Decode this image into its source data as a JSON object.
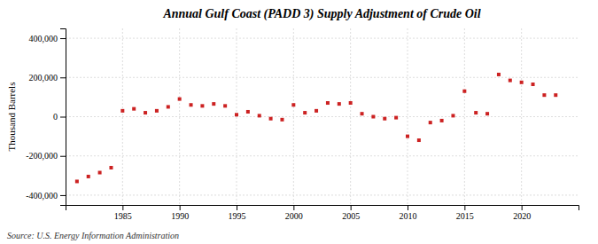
{
  "chart_data": {
    "type": "scatter",
    "title": "Annual Gulf Coast (PADD 3) Supply Adjustment of Crude Oil",
    "ylabel": "Thousand Barrels",
    "source": "Source: U.S. Energy Information Administration",
    "x": [
      1981,
      1982,
      1983,
      1984,
      1985,
      1986,
      1987,
      1988,
      1989,
      1990,
      1991,
      1992,
      1993,
      1994,
      1995,
      1996,
      1997,
      1998,
      1999,
      2000,
      2001,
      2002,
      2003,
      2004,
      2005,
      2006,
      2007,
      2008,
      2009,
      2010,
      2011,
      2012,
      2013,
      2014,
      2015,
      2016,
      2017,
      2018,
      2019,
      2020,
      2021,
      2022,
      2023
    ],
    "values": [
      -330000,
      -305000,
      -285000,
      -260000,
      30000,
      40000,
      20000,
      30000,
      50000,
      90000,
      60000,
      55000,
      65000,
      55000,
      10000,
      25000,
      5000,
      -10000,
      -15000,
      60000,
      20000,
      30000,
      70000,
      65000,
      70000,
      15000,
      0,
      -10000,
      -5000,
      -100000,
      -120000,
      -30000,
      -20000,
      5000,
      130000,
      20000,
      15000,
      215000,
      185000,
      175000,
      165000,
      110000,
      110000
    ],
    "color": "#cc2222",
    "marker": "square",
    "xlim": [
      1980,
      2025
    ],
    "xticks": [
      1985,
      1990,
      1995,
      2000,
      2005,
      2010,
      2015,
      2020
    ],
    "ylim": [
      -450000,
      450000
    ],
    "yticks": [
      {
        "value": -400000,
        "label": "-400,000"
      },
      {
        "value": -200000,
        "label": "-200,000"
      },
      0,
      {
        "value": 200000,
        "label": "200,000"
      },
      {
        "value": 400000,
        "label": "400,000"
      }
    ],
    "grid": true
  }
}
